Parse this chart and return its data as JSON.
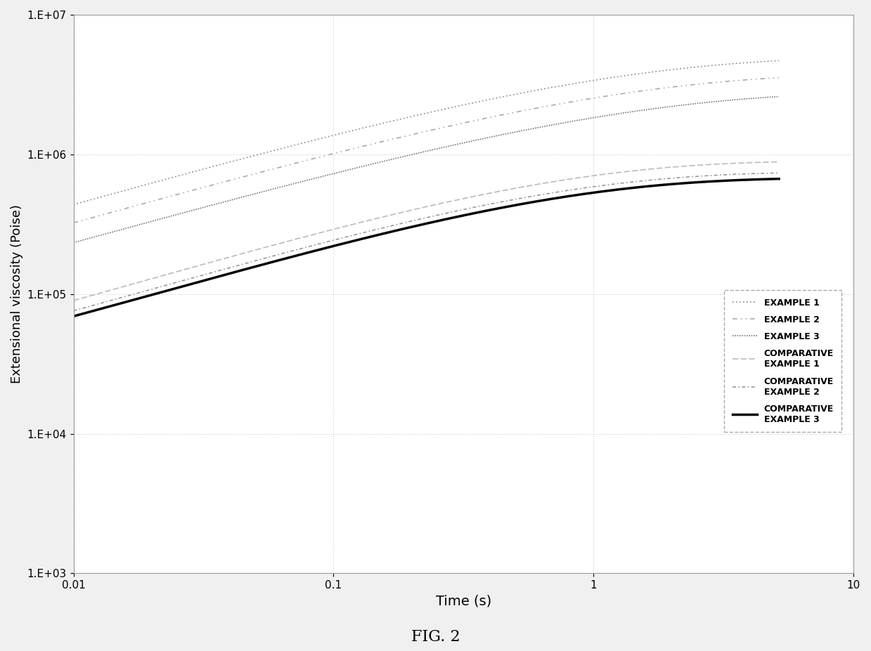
{
  "title": "FIG. 2",
  "xlabel": "Time (s)",
  "ylabel": "Extensional viscosity (Poise)",
  "xlim": [
    0.01,
    10
  ],
  "ylim": [
    1000.0,
    10000000.0
  ],
  "background_color": "#f0f0f0",
  "plot_bg_color": "#ffffff",
  "legend_entries": [
    "EXAMPLE 1",
    "EXAMPLE 2",
    "EXAMPLE 3",
    "COMPARATIVE\nEXAMPLE 1",
    "COMPARATIVE\nEXAMPLE 2",
    "COMPARATIVE\nEXAMPLE 3"
  ],
  "line_colors": [
    "#888888",
    "#aaaaaa",
    "#777777",
    "#bbbbbb",
    "#999999",
    "#000000"
  ],
  "line_widths": [
    1.2,
    1.2,
    1.2,
    1.2,
    1.2,
    2.5
  ],
  "curve_params": {
    "ex1": {
      "v0": 8500,
      "v_inf": 5000000,
      "tau": 0.8,
      "n": 0.55
    },
    "ex2": {
      "v0": 8200,
      "v_inf": 3800000,
      "tau": 0.85,
      "n": 0.55
    },
    "ex3": {
      "v0": 8000,
      "v_inf": 2800000,
      "tau": 0.9,
      "n": 0.55
    },
    "comp1": {
      "v0": 8500,
      "v_inf": 900000,
      "tau": 0.5,
      "n": 0.6
    },
    "comp2": {
      "v0": 8200,
      "v_inf": 750000,
      "tau": 0.5,
      "n": 0.6
    },
    "comp3": {
      "v0": 8000,
      "v_inf": 680000,
      "tau": 0.5,
      "n": 0.6
    }
  }
}
